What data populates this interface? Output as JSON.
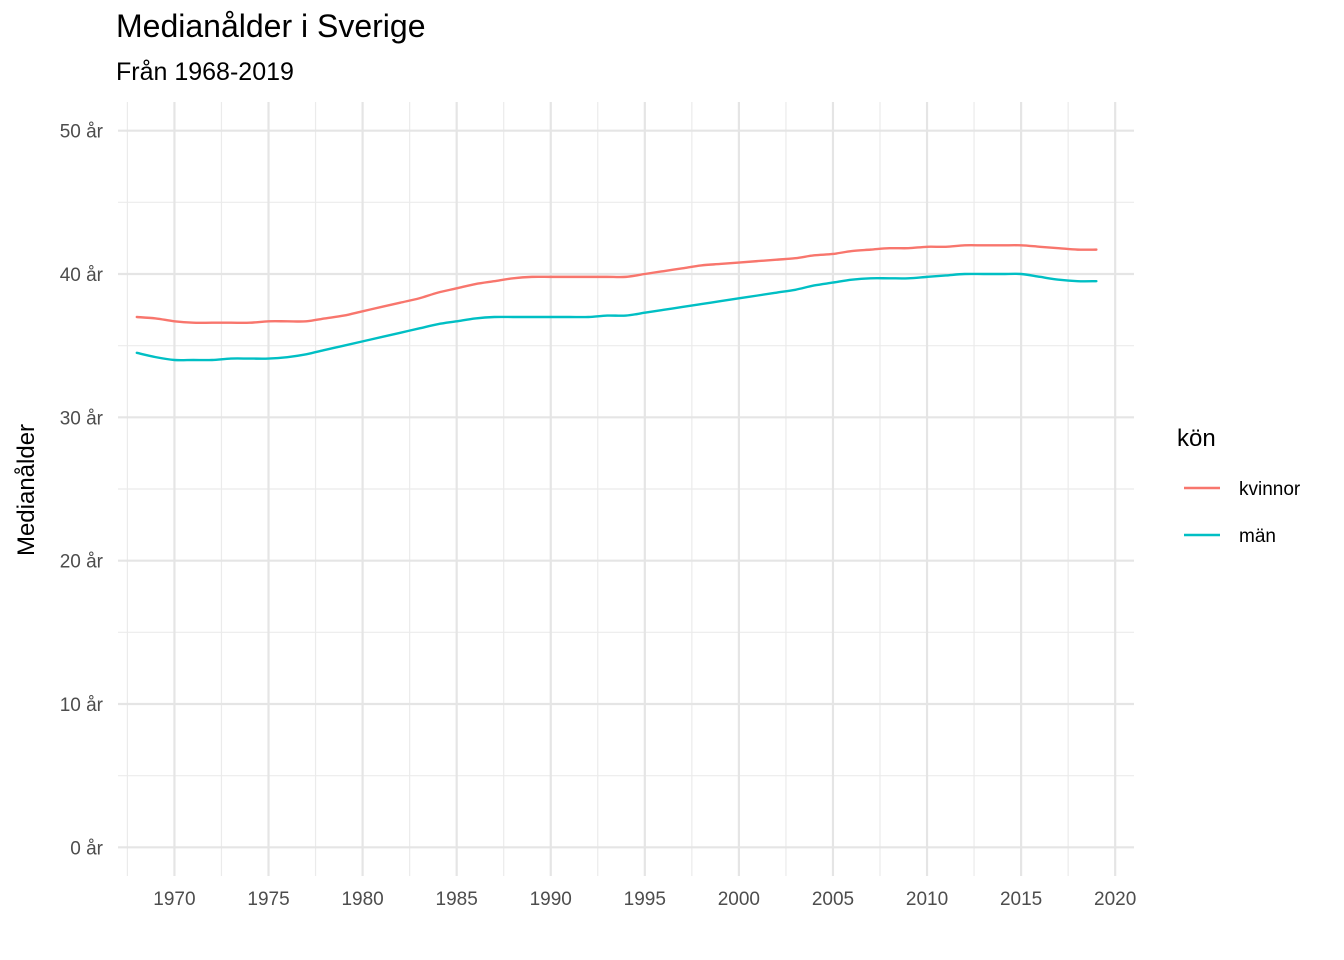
{
  "chart_data": {
    "type": "line",
    "title": "Medianålder i Sverige",
    "subtitle": "Från 1968-2019",
    "xlabel": "",
    "ylabel": "Medianålder",
    "xlim": [
      1967,
      2021
    ],
    "ylim": [
      -2,
      52
    ],
    "x_ticks": [
      1970,
      1975,
      1980,
      1985,
      1990,
      1995,
      2000,
      2005,
      2010,
      2015,
      2020
    ],
    "x_tick_labels": [
      "1970",
      "1975",
      "1980",
      "1985",
      "1990",
      "1995",
      "2000",
      "2005",
      "2010",
      "2015",
      "2020"
    ],
    "y_ticks": [
      0,
      10,
      20,
      30,
      40,
      50
    ],
    "y_tick_labels": [
      "0 år",
      "10 år",
      "20 år",
      "30 år",
      "40 år",
      "50 år"
    ],
    "grid": true,
    "legend": {
      "title": "kön",
      "position": "right"
    },
    "x": [
      1968,
      1969,
      1970,
      1971,
      1972,
      1973,
      1974,
      1975,
      1976,
      1977,
      1978,
      1979,
      1980,
      1981,
      1982,
      1983,
      1984,
      1985,
      1986,
      1987,
      1988,
      1989,
      1990,
      1991,
      1992,
      1993,
      1994,
      1995,
      1996,
      1997,
      1998,
      1999,
      2000,
      2001,
      2002,
      2003,
      2004,
      2005,
      2006,
      2007,
      2008,
      2009,
      2010,
      2011,
      2012,
      2013,
      2014,
      2015,
      2016,
      2017,
      2018,
      2019
    ],
    "series": [
      {
        "name": "kvinnor",
        "color": "#F8766D",
        "values": [
          37.0,
          36.9,
          36.7,
          36.6,
          36.6,
          36.6,
          36.6,
          36.7,
          36.7,
          36.7,
          36.9,
          37.1,
          37.4,
          37.7,
          38.0,
          38.3,
          38.7,
          39.0,
          39.3,
          39.5,
          39.7,
          39.8,
          39.8,
          39.8,
          39.8,
          39.8,
          39.8,
          40.0,
          40.2,
          40.4,
          40.6,
          40.7,
          40.8,
          40.9,
          41.0,
          41.1,
          41.3,
          41.4,
          41.6,
          41.7,
          41.8,
          41.8,
          41.9,
          41.9,
          42.0,
          42.0,
          42.0,
          42.0,
          41.9,
          41.8,
          41.7,
          41.7
        ]
      },
      {
        "name": "män",
        "color": "#00BFC4",
        "values": [
          34.5,
          34.2,
          34.0,
          34.0,
          34.0,
          34.1,
          34.1,
          34.1,
          34.2,
          34.4,
          34.7,
          35.0,
          35.3,
          35.6,
          35.9,
          36.2,
          36.5,
          36.7,
          36.9,
          37.0,
          37.0,
          37.0,
          37.0,
          37.0,
          37.0,
          37.1,
          37.1,
          37.3,
          37.5,
          37.7,
          37.9,
          38.1,
          38.3,
          38.5,
          38.7,
          38.9,
          39.2,
          39.4,
          39.6,
          39.7,
          39.7,
          39.7,
          39.8,
          39.9,
          40.0,
          40.0,
          40.0,
          40.0,
          39.8,
          39.6,
          39.5,
          39.5
        ]
      }
    ]
  }
}
